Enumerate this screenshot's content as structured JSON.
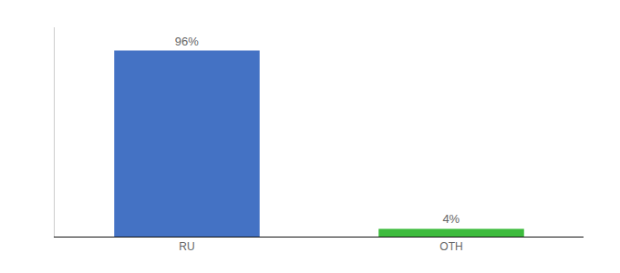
{
  "chart_data": {
    "type": "bar",
    "categories": [
      "RU",
      "OTH"
    ],
    "values": [
      96,
      4
    ],
    "value_labels": [
      "96%",
      "4%"
    ],
    "colors": [
      "#4472c4",
      "#3dbb3d"
    ],
    "ylim": [
      0,
      108
    ],
    "grid": false,
    "data_labels": true,
    "tick_labels": "x"
  }
}
